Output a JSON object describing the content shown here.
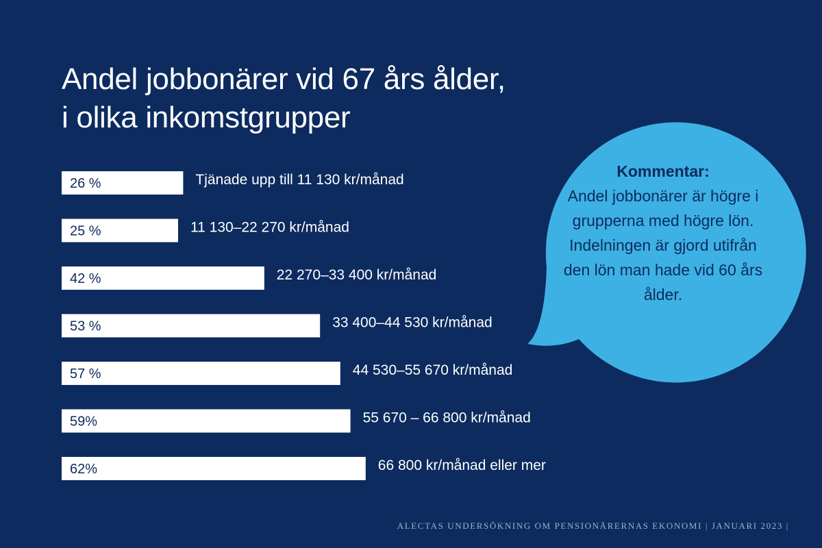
{
  "title": {
    "line1": "Andel jobbonärer vid 67 års ålder,",
    "line2": "i olika inkomstgrupper"
  },
  "chart_data": {
    "type": "bar",
    "orientation": "horizontal",
    "categories": [
      "Tjänade upp till 11 130 kr/månad",
      "11 130–22 270 kr/månad",
      "22 270–33 400 kr/månad",
      "33 400–44 530 kr/månad",
      "44 530–55 670 kr/månad",
      "55 670 – 66 800 kr/månad",
      "66 800 kr/månad eller mer"
    ],
    "values": [
      26,
      25,
      42,
      53,
      57,
      59,
      62
    ],
    "value_labels": [
      "26 %",
      "25 %",
      "42 %",
      "53 %",
      "57 %",
      "59%",
      "62%"
    ],
    "unit": "%",
    "bar_color": "#ffffff",
    "value_label_color": "#0d2b5e"
  },
  "callout": {
    "heading": "Kommentar:",
    "body": "Andel jobbonärer är högre i grupperna med högre lön. Indelningen är gjord utifrån den lön man hade vid 60 års ålder.",
    "color": "#3db1e4"
  },
  "footer": "ALECTAS UNDERSÖKNING OM PENSIONÄRERNAS EKONOMI | JANUARI 2023 |",
  "colors": {
    "background": "#0d2b5e",
    "text": "#ffffff",
    "footer_text": "#9fb0cf"
  }
}
